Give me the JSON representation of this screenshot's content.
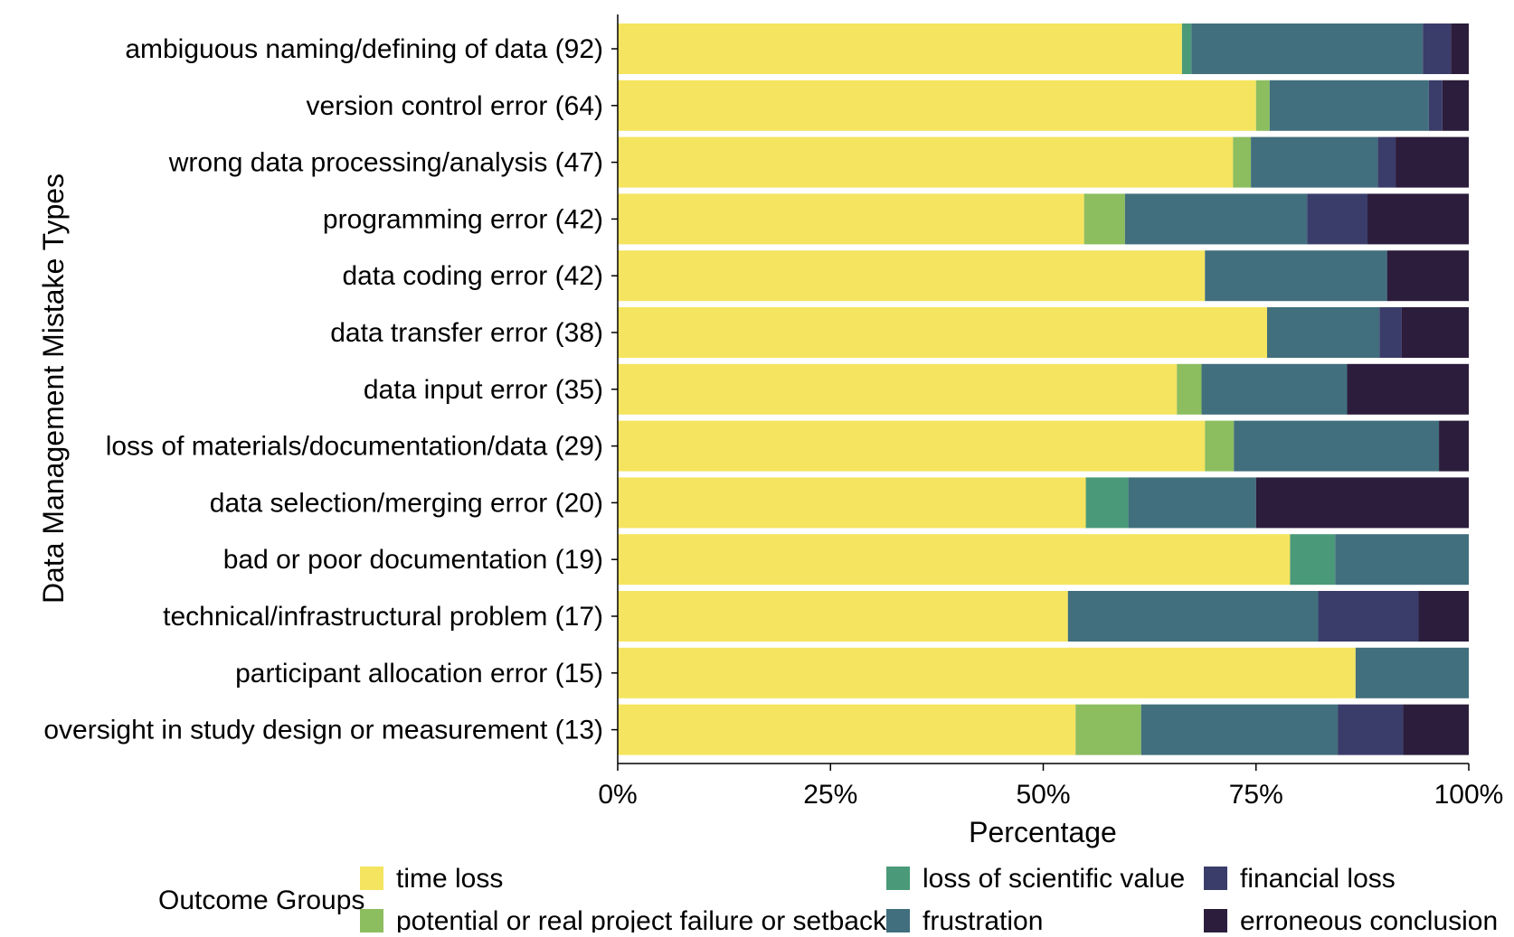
{
  "chart_data": {
    "type": "bar",
    "orientation": "horizontal",
    "stacked": true,
    "normalized": true,
    "xlabel": "Percentage",
    "ylabel": "Data Management Mistake Types",
    "xlim": [
      0,
      100
    ],
    "xticks": [
      "0%",
      "25%",
      "50%",
      "75%",
      "100%"
    ],
    "xtick_values": [
      0,
      25,
      50,
      75,
      100
    ],
    "grid": false,
    "legend": {
      "title": "Outcome Groups",
      "placement": "bottom"
    },
    "categories": [
      "ambiguous naming/defining of data (92)",
      "version control error (64)",
      "wrong data processing/analysis (47)",
      "programming error (42)",
      "data coding error (42)",
      "data transfer error (38)",
      "data input error (35)",
      "loss of materials/documentation/data (29)",
      "data selection/merging error (20)",
      "bad or poor documentation (19)",
      "technical/infrastructural problem (17)",
      "participant allocation error (15)",
      "oversight in study design or measurement (13)"
    ],
    "series": [
      {
        "name": "time loss",
        "color": "#f5e45f",
        "values": [
          66.3,
          75.0,
          72.3,
          54.8,
          69.0,
          76.3,
          65.7,
          69.0,
          55.0,
          79.0,
          52.9,
          86.7,
          53.8
        ]
      },
      {
        "name": "potential or real project failure or setback",
        "color": "#8cbd5f",
        "values": [
          0,
          1.6,
          2.1,
          4.8,
          0,
          0,
          2.9,
          3.4,
          0,
          0,
          0,
          0,
          7.7
        ]
      },
      {
        "name": "loss of scientific value",
        "color": "#4a9a79",
        "values": [
          1.1,
          0,
          0,
          0,
          0,
          0,
          0,
          0,
          5.0,
          5.3,
          0,
          0,
          0
        ]
      },
      {
        "name": "frustration",
        "color": "#416f7d",
        "values": [
          27.2,
          18.7,
          14.9,
          21.4,
          21.4,
          13.2,
          17.1,
          24.1,
          15.0,
          15.7,
          29.4,
          13.3,
          23.1
        ]
      },
      {
        "name": "financial loss",
        "color": "#3a3d6a",
        "values": [
          3.3,
          1.6,
          2.1,
          7.1,
          0,
          2.6,
          0,
          0,
          0,
          0,
          11.8,
          0,
          7.7
        ]
      },
      {
        "name": "erroneous conclusion",
        "color": "#2c1d3c",
        "values": [
          2.1,
          3.1,
          8.6,
          11.9,
          9.6,
          7.9,
          14.3,
          3.5,
          25.0,
          0,
          5.9,
          0,
          7.7
        ]
      }
    ]
  }
}
